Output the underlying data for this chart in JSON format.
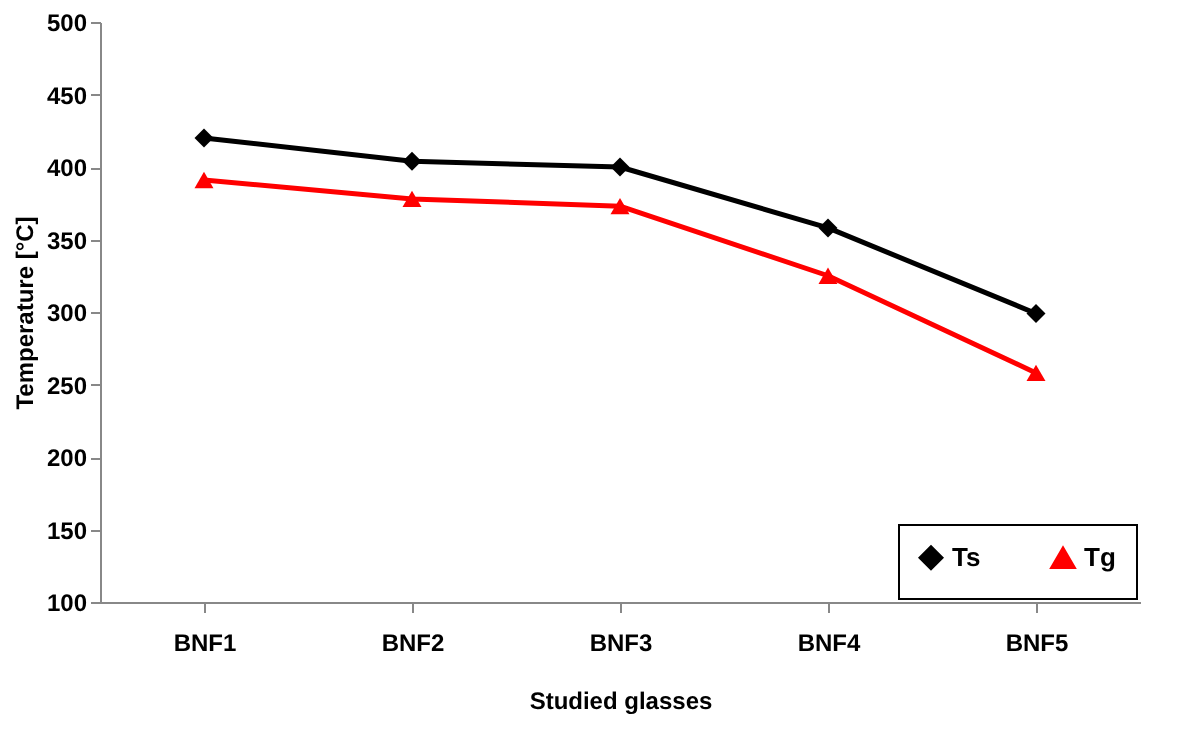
{
  "chart_data": {
    "type": "line",
    "xlabel": "Studied glasses",
    "ylabel": "Temperature [°C]",
    "categories": [
      "BNF1",
      "BNF2",
      "BNF3",
      "BNF4",
      "BNF5"
    ],
    "series": [
      {
        "name": "Ts",
        "color": "#000000",
        "marker": "diamond",
        "values": [
          420,
          404,
          400,
          358,
          299
        ]
      },
      {
        "name": "Tg",
        "color": "#ff0000",
        "marker": "triangle",
        "values": [
          391,
          378,
          373,
          325,
          258
        ]
      }
    ],
    "ylim": [
      100,
      500
    ],
    "yticks": [
      100,
      150,
      200,
      250,
      300,
      350,
      400,
      450,
      500
    ],
    "grid": false,
    "legend": "bottom right",
    "line_style": "solid"
  }
}
